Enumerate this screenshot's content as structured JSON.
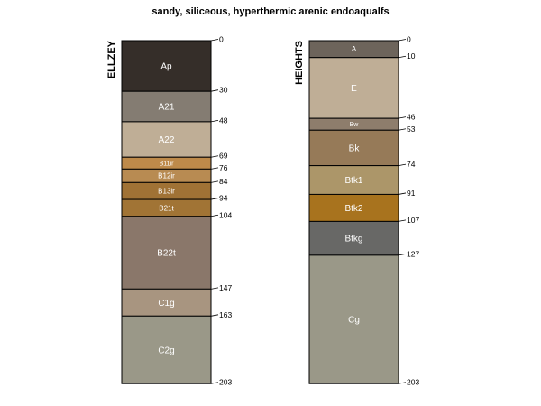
{
  "title": "sandy, siliceous, hyperthermic arenic endoaqualfs",
  "profiles": [
    {
      "name": "ELLZEY",
      "horizons": [
        {
          "name": "Ap",
          "top": 0,
          "bottom": 30,
          "color": "#352E29"
        },
        {
          "name": "A21",
          "top": 30,
          "bottom": 48,
          "color": "#847C72"
        },
        {
          "name": "A22",
          "top": 48,
          "bottom": 69,
          "color": "#BFAE96"
        },
        {
          "name": "B11ir",
          "top": 69,
          "bottom": 76,
          "color": "#BE8A4A"
        },
        {
          "name": "B12ir",
          "top": 76,
          "bottom": 84,
          "color": "#B88B52"
        },
        {
          "name": "B13ir",
          "top": 84,
          "bottom": 94,
          "color": "#A07235"
        },
        {
          "name": "B21t",
          "top": 94,
          "bottom": 104,
          "color": "#A17435"
        },
        {
          "name": "B22t",
          "top": 104,
          "bottom": 147,
          "color": "#8A776A"
        },
        {
          "name": "C1g",
          "top": 147,
          "bottom": 163,
          "color": "#A89580"
        },
        {
          "name": "C2g",
          "top": 163,
          "bottom": 203,
          "color": "#9A9888"
        }
      ]
    },
    {
      "name": "HEIGHTS",
      "horizons": [
        {
          "name": "A",
          "top": 0,
          "bottom": 10,
          "color": "#6D645B"
        },
        {
          "name": "E",
          "top": 10,
          "bottom": 46,
          "color": "#BFAE96"
        },
        {
          "name": "Bw",
          "top": 46,
          "bottom": 53,
          "color": "#8E7D6C"
        },
        {
          "name": "Bk",
          "top": 53,
          "bottom": 74,
          "color": "#967A58"
        },
        {
          "name": "Btk1",
          "top": 74,
          "bottom": 91,
          "color": "#AC9669"
        },
        {
          "name": "Btk2",
          "top": 91,
          "bottom": 107,
          "color": "#A8731E"
        },
        {
          "name": "Btkg",
          "top": 107,
          "bottom": 127,
          "color": "#686866"
        },
        {
          "name": "Cg",
          "top": 127,
          "bottom": 203,
          "color": "#9A9888"
        }
      ]
    }
  ]
}
